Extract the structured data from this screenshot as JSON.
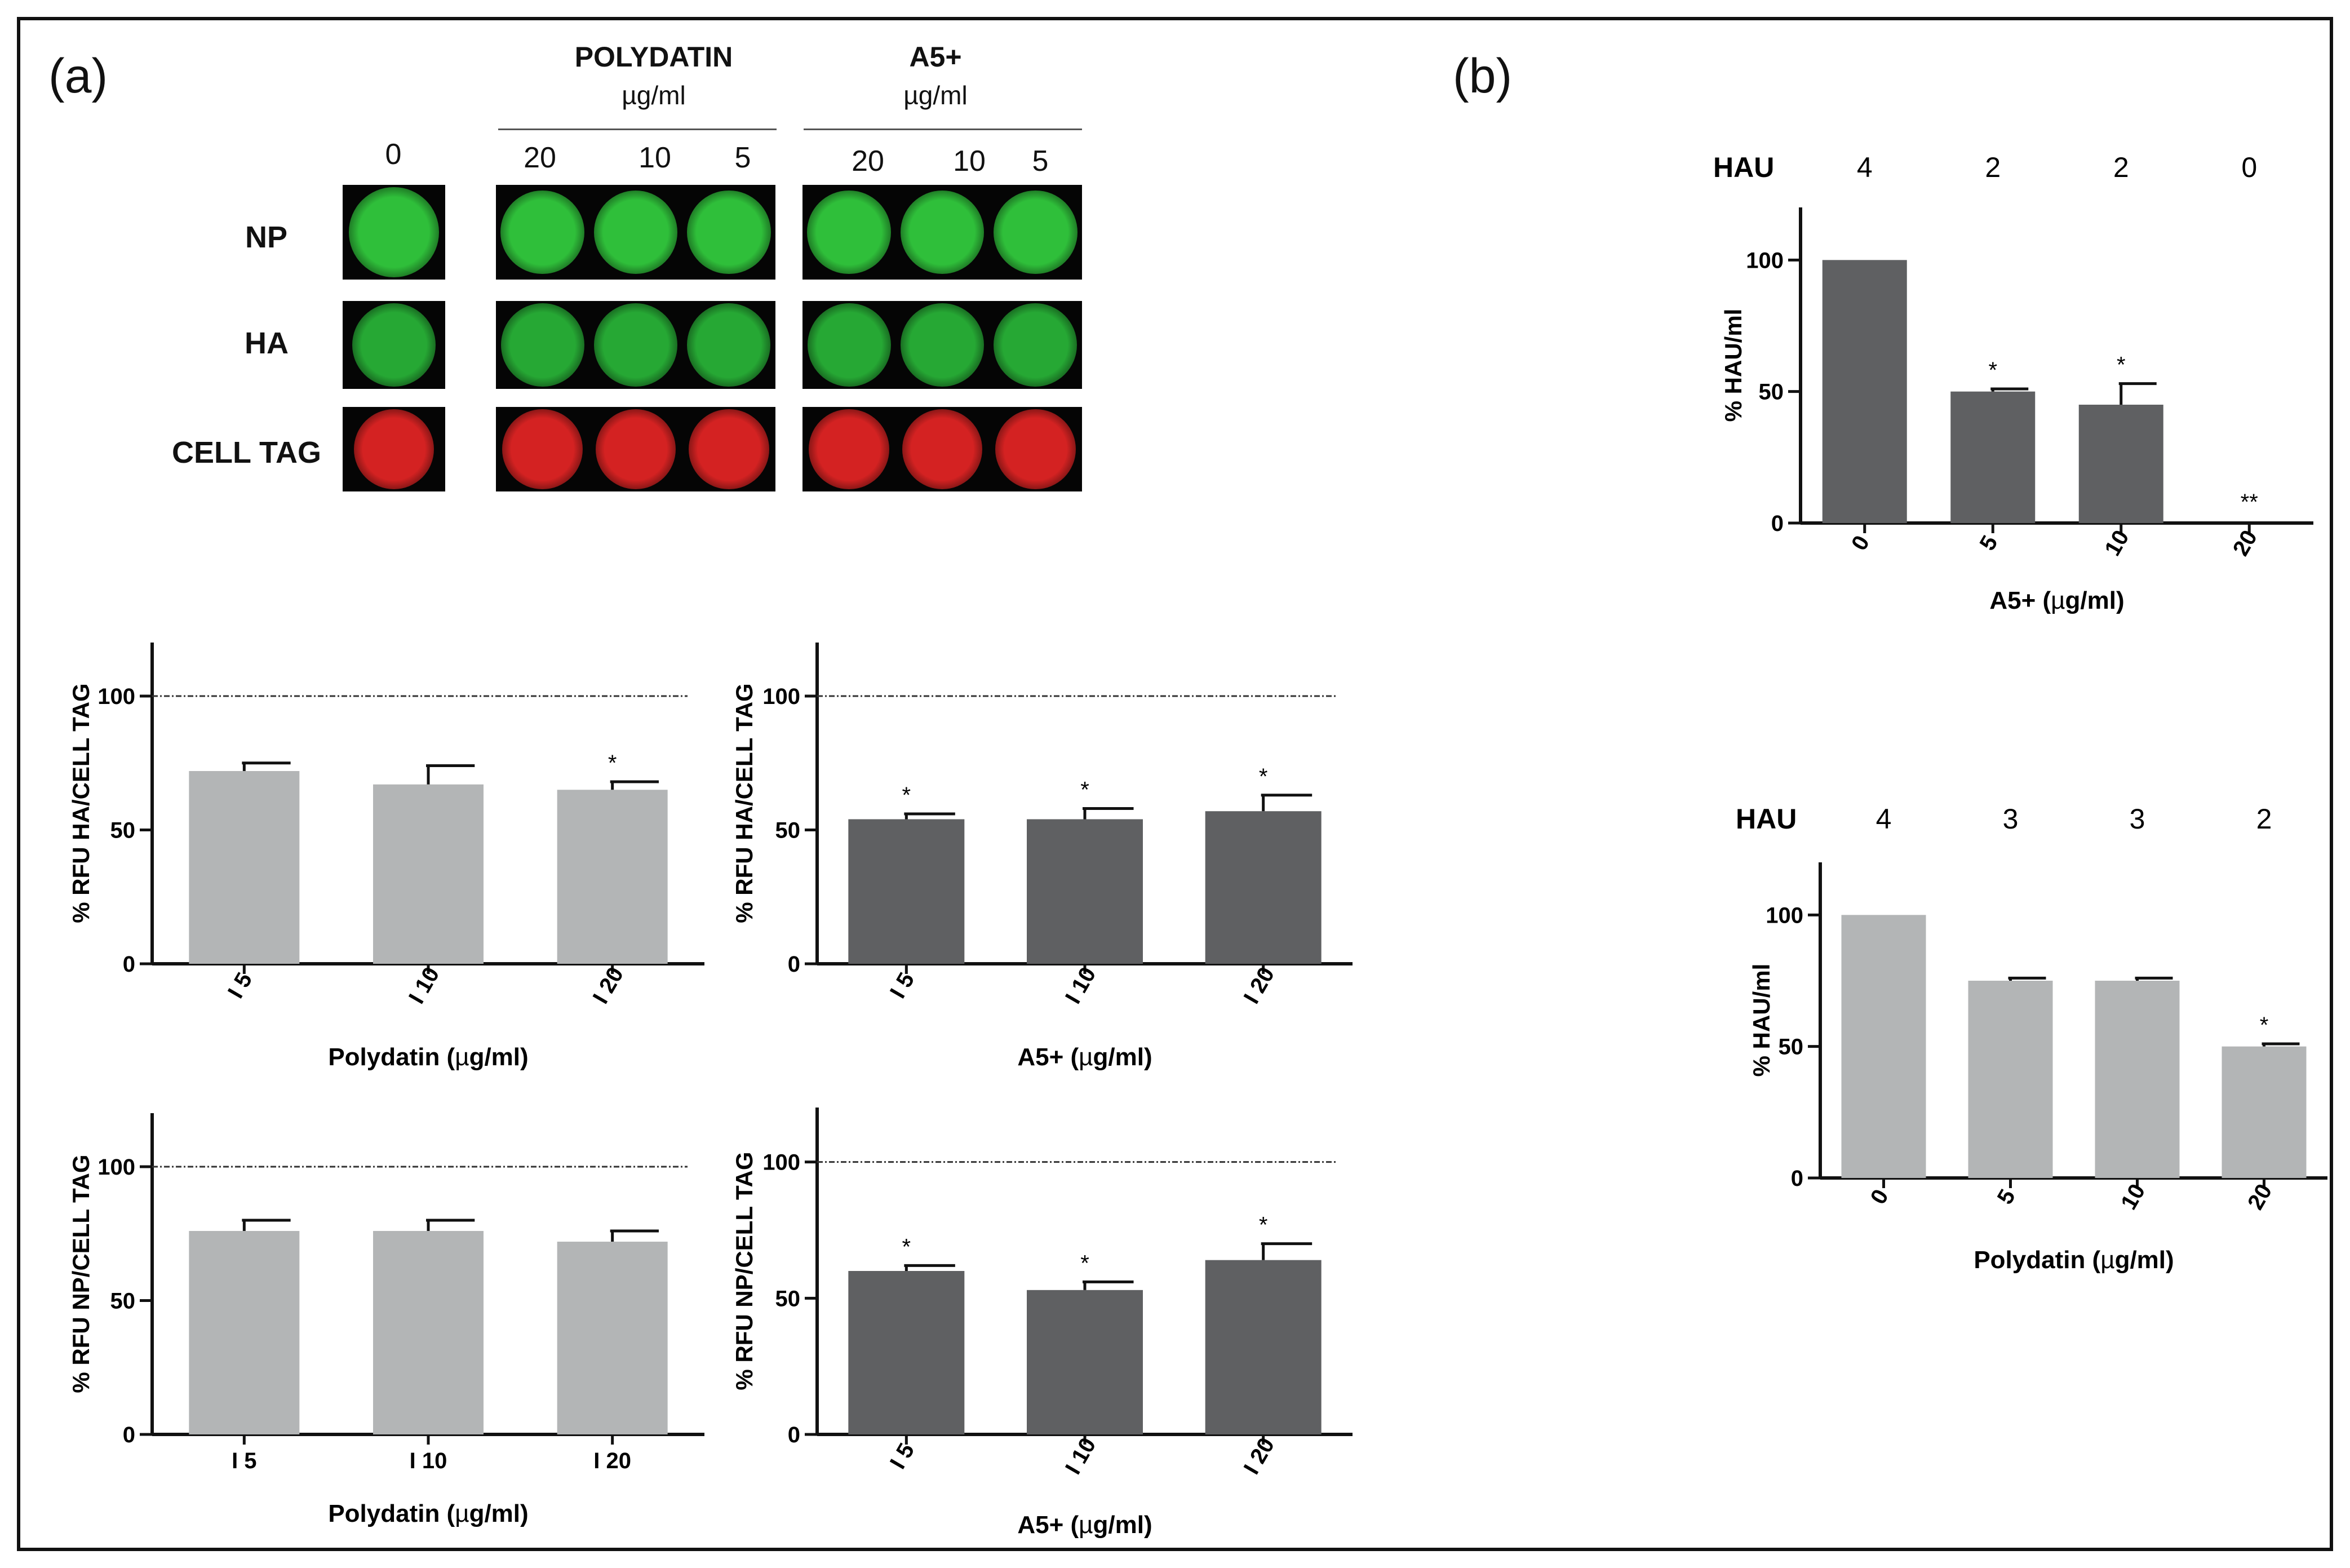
{
  "panels": {
    "a_label": "(a)",
    "b_label": "(b)"
  },
  "micrograph": {
    "polydatin_title": "POLYDATIN",
    "polydatin_unit": "µg/ml",
    "a5_title": "A5+",
    "a5_unit": "µg/ml",
    "control_dose": "0",
    "polydatin_doses": [
      "20",
      "10",
      "5"
    ],
    "a5_doses": [
      "20",
      "10",
      "5"
    ],
    "rows": [
      {
        "label": "NP",
        "color": "#2fbf3a"
      },
      {
        "label": "HA",
        "color": "#26a834"
      },
      {
        "label": "CELL TAG",
        "color": "#d42222"
      }
    ]
  },
  "colors": {
    "light_bar": "#b3b5b6",
    "dark_bar": "#5f6062",
    "axis": "#111111"
  },
  "chart_data": [
    {
      "id": "poly-ha",
      "type": "bar",
      "title": "",
      "ylabel": "% RFU HA/CELL TAG",
      "xlabel_main": "Polydatin (",
      "xlabel_mu": "µ",
      "xlabel_end": "g/ml)",
      "categories": [
        "I 5",
        "I 10",
        "I 20"
      ],
      "values": [
        72,
        67,
        65
      ],
      "errors": [
        3,
        7,
        3
      ],
      "annotations": [
        "",
        "",
        "*"
      ],
      "ylim": [
        0,
        120
      ],
      "yticks": [
        0,
        50,
        100
      ],
      "reference_line": 100,
      "bar_color": "light",
      "rotate_ticks": true
    },
    {
      "id": "a5-ha",
      "type": "bar",
      "title": "",
      "ylabel": "% RFU HA/CELL TAG",
      "xlabel_main": "A5+  (",
      "xlabel_mu": "µ",
      "xlabel_end": "g/ml)",
      "categories": [
        "I 5",
        "I 10",
        "I 20"
      ],
      "values": [
        54,
        54,
        57
      ],
      "errors": [
        2,
        4,
        6
      ],
      "annotations": [
        "*",
        "*",
        "*"
      ],
      "ylim": [
        0,
        120
      ],
      "yticks": [
        0,
        50,
        100
      ],
      "reference_line": 100,
      "bar_color": "dark",
      "rotate_ticks": true
    },
    {
      "id": "poly-np",
      "type": "bar",
      "title": "",
      "ylabel": "% RFU NP/CELL TAG",
      "xlabel_main": "Polydatin (",
      "xlabel_mu": "µ",
      "xlabel_end": "g/ml)",
      "categories": [
        "I 5",
        "I 10",
        "I 20"
      ],
      "values": [
        76,
        76,
        72
      ],
      "errors": [
        4,
        4,
        4
      ],
      "annotations": [
        "",
        "",
        ""
      ],
      "ylim": [
        0,
        120
      ],
      "yticks": [
        0,
        50,
        100
      ],
      "reference_line": 100,
      "bar_color": "light",
      "rotate_ticks": false
    },
    {
      "id": "a5-np",
      "type": "bar",
      "title": "",
      "ylabel": "% RFU NP/CELL TAG",
      "xlabel_main": "A5+ (",
      "xlabel_mu": "µ",
      "xlabel_end": "g/ml)",
      "categories": [
        "I 5",
        "I 10",
        "I 20"
      ],
      "values": [
        60,
        53,
        64
      ],
      "errors": [
        2,
        3,
        6
      ],
      "annotations": [
        "*",
        "*",
        "*"
      ],
      "ylim": [
        0,
        120
      ],
      "yticks": [
        0,
        50,
        100
      ],
      "reference_line": 100,
      "bar_color": "dark",
      "rotate_ticks": true
    },
    {
      "id": "a5-hau",
      "type": "bar",
      "title": "",
      "ylabel": "% HAU/ml",
      "xlabel_main": "A5+ (",
      "xlabel_mu": "µ",
      "xlabel_end": "g/ml)",
      "categories": [
        "0",
        "5",
        "10",
        "20"
      ],
      "values": [
        100,
        50,
        45,
        0
      ],
      "errors": [
        0,
        1,
        8,
        0
      ],
      "annotations": [
        "",
        "*",
        "*",
        "**"
      ],
      "hau_label": "HAU",
      "hau_values": [
        "4",
        "2",
        "2",
        "0"
      ],
      "ylim": [
        0,
        120
      ],
      "yticks": [
        0,
        50,
        100
      ],
      "reference_line": null,
      "bar_color": "dark",
      "rotate_ticks": true
    },
    {
      "id": "poly-hau",
      "type": "bar",
      "title": "",
      "ylabel": "% HAU/ml",
      "xlabel_main": "Polydatin (",
      "xlabel_mu": "µ",
      "xlabel_end": "g/ml)",
      "categories": [
        "0",
        "5",
        "10",
        "20"
      ],
      "values": [
        100,
        75,
        75,
        50
      ],
      "errors": [
        0,
        1,
        1,
        1
      ],
      "annotations": [
        "",
        "",
        "",
        "*"
      ],
      "hau_label": "HAU",
      "hau_values": [
        "4",
        "3",
        "3",
        "2"
      ],
      "ylim": [
        0,
        120
      ],
      "yticks": [
        0,
        50,
        100
      ],
      "reference_line": null,
      "bar_color": "light",
      "rotate_ticks": true
    }
  ]
}
